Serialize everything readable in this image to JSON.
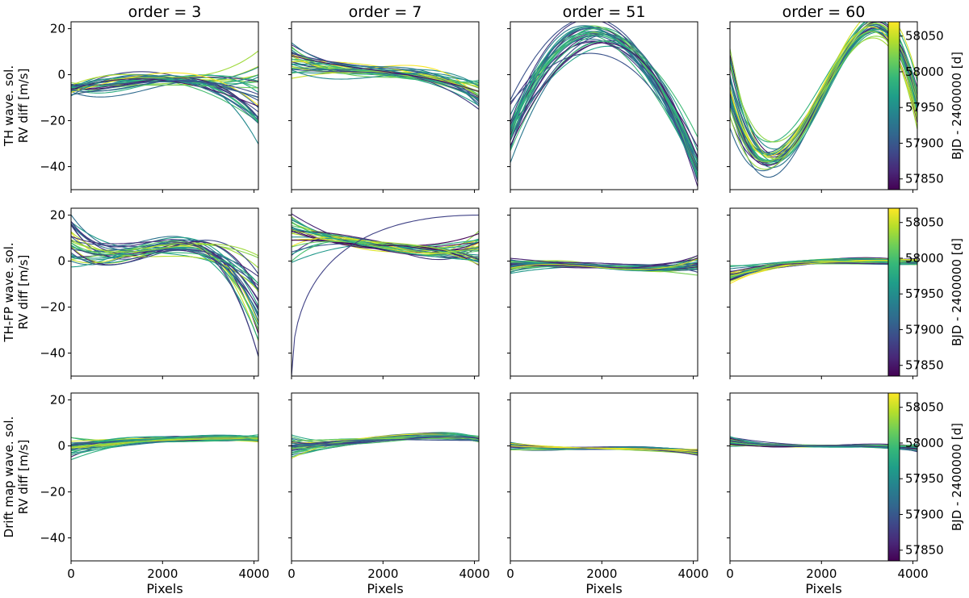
{
  "chart_data": {
    "type": "line",
    "column_titles": [
      "order = 3",
      "order = 7",
      "order = 51",
      "order = 60"
    ],
    "row_labels": [
      [
        "TH wave. sol.",
        "RV diff [m/s]"
      ],
      [
        "TH-FP wave. sol.",
        "RV diff [m/s]"
      ],
      [
        "Drift map wave. sol.",
        "RV diff [m/s]"
      ]
    ],
    "xlabel": "Pixels",
    "xlim": [
      0,
      4096
    ],
    "ylim": [
      -50,
      23
    ],
    "xticks": [
      0,
      2000,
      4000
    ],
    "yticks": [
      20,
      0,
      -20,
      -40
    ],
    "xtick_labels": [
      "0",
      "2000",
      "4000"
    ],
    "ytick_labels": [
      "20",
      "0",
      "−20",
      "−40"
    ],
    "colorbar": {
      "label": "BJD - 2400000 [d]",
      "range": [
        57835,
        58070
      ],
      "ticks": [
        58050,
        58000,
        57950,
        57900,
        57850
      ],
      "tick_labels": [
        "58050",
        "58000",
        "57950",
        "57900",
        "57850"
      ],
      "colormap": [
        "#440154",
        "#482878",
        "#3e4989",
        "#31688e",
        "#26828e",
        "#1f9e89",
        "#35b779",
        "#6ece58",
        "#b5de2b",
        "#fde725"
      ]
    },
    "n_curves_per_panel": 32,
    "panels": [
      {
        "row": 0,
        "col": 0,
        "base": [
          -6,
          -3,
          -3,
          -10
        ],
        "slope": [
          2,
          2,
          1,
          14
        ],
        "curv": [
          5,
          3,
          2,
          9
        ],
        "n_outliers": 0
      },
      {
        "row": 0,
        "col": 1,
        "base": [
          6,
          2,
          0,
          -8
        ],
        "slope": [
          5,
          3,
          2,
          4
        ],
        "curv": [
          3,
          2,
          2,
          3
        ],
        "n_outliers": 0
      },
      {
        "row": 0,
        "col": 2,
        "base": [
          -25,
          15,
          8,
          -40
        ],
        "slope": [
          8,
          4,
          5,
          7
        ],
        "curv": [
          8,
          6,
          4,
          8
        ],
        "n_outliers": 0
      },
      {
        "row": 0,
        "col": 3,
        "base": [
          -5,
          -30,
          15,
          -12
        ],
        "slope": [
          10,
          5,
          5,
          8
        ],
        "curv": [
          5,
          4,
          3,
          6
        ],
        "n_outliers": 0
      },
      {
        "row": 1,
        "col": 0,
        "base": [
          8,
          4,
          6,
          -20
        ],
        "slope": [
          8,
          3,
          3,
          18
        ],
        "curv": [
          6,
          3,
          3,
          12
        ],
        "n_outliers": 0
      },
      {
        "row": 1,
        "col": 1,
        "base": [
          10,
          8,
          5,
          4
        ],
        "slope": [
          7,
          3,
          2,
          5
        ],
        "curv": [
          3,
          2,
          2,
          3
        ],
        "n_outliers": 1
      },
      {
        "row": 1,
        "col": 2,
        "base": [
          -2,
          -2,
          -3,
          -2
        ],
        "slope": [
          3,
          2,
          2,
          3
        ],
        "curv": [
          1,
          1,
          1,
          1
        ],
        "n_outliers": 0
      },
      {
        "row": 1,
        "col": 3,
        "base": [
          -6,
          -1,
          0,
          0
        ],
        "slope": [
          3,
          1,
          1,
          1
        ],
        "curv": [
          1,
          1,
          1,
          1
        ],
        "n_outliers": 0
      },
      {
        "row": 2,
        "col": 0,
        "base": [
          -1,
          2,
          3,
          3
        ],
        "slope": [
          3,
          2,
          1,
          1
        ],
        "curv": [
          1,
          1,
          1,
          1
        ],
        "n_outliers": 0
      },
      {
        "row": 2,
        "col": 1,
        "base": [
          0,
          2,
          4,
          3
        ],
        "slope": [
          3,
          2,
          1,
          1
        ],
        "curv": [
          1,
          1,
          1,
          1
        ],
        "n_outliers": 0
      },
      {
        "row": 2,
        "col": 2,
        "base": [
          0,
          -1,
          -1,
          -3
        ],
        "slope": [
          1,
          0.5,
          0.5,
          1
        ],
        "curv": [
          0.5,
          0.5,
          0.5,
          0.5
        ],
        "n_outliers": 0
      },
      {
        "row": 2,
        "col": 3,
        "base": [
          2,
          0,
          0,
          -1
        ],
        "slope": [
          1.5,
          0.5,
          0.5,
          1
        ],
        "curv": [
          0.5,
          0.5,
          0.5,
          0.5
        ],
        "n_outliers": 0
      }
    ]
  }
}
